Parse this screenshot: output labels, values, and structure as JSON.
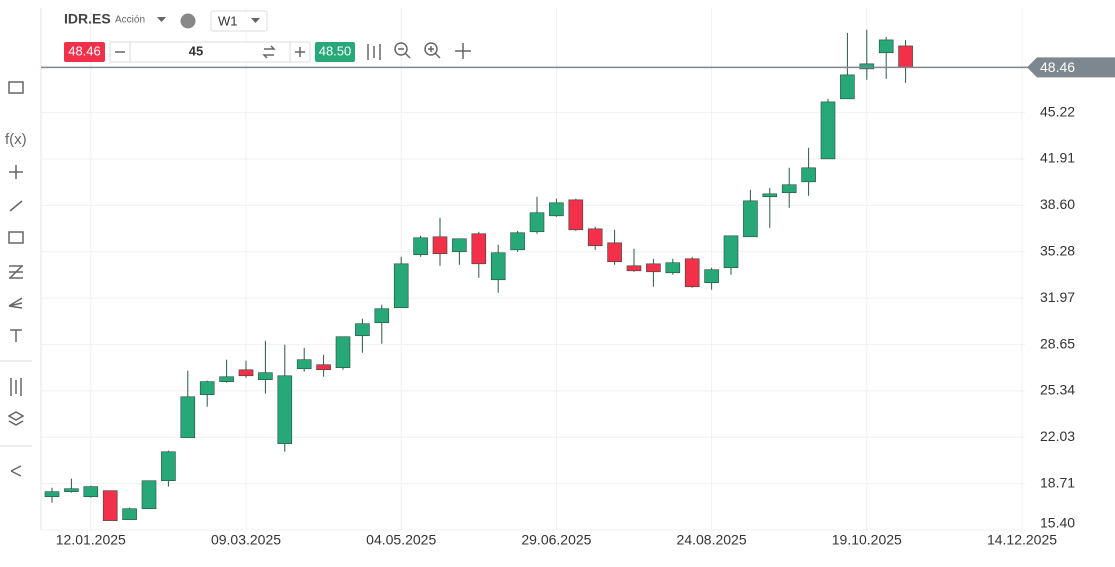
{
  "toolbar": {
    "symbol": "IDR.ES",
    "asset_type": "Acción",
    "timeframe": "W1",
    "sell_price": "48.46",
    "quantity": "45",
    "buy_price": "48.50"
  },
  "chart_data": {
    "type": "candlestick",
    "categories": [
      null,
      null,
      "12.01.2025",
      null,
      null,
      null,
      null,
      null,
      null,
      null,
      "09.03.2025",
      null,
      null,
      null,
      null,
      null,
      null,
      null,
      "04.05.2025",
      null,
      null,
      null,
      null,
      null,
      null,
      null,
      "29.06.2025",
      null,
      null,
      null,
      null,
      null,
      null,
      null,
      "24.08.2025",
      null,
      null,
      null,
      null,
      null,
      null,
      null,
      "19.10.2025",
      null,
      null,
      null,
      null,
      null,
      null,
      null,
      "14.12.2025"
    ],
    "series": [
      {
        "up_color": "#26a878",
        "down_color": "#f2304a",
        "open": [
          17.78,
          18.14,
          17.78,
          18.21,
          16.14,
          16.92,
          18.92,
          22.0,
          25.07,
          26.0,
          26.85,
          26.14,
          21.57,
          26.92,
          27.21,
          27.0,
          29.28,
          30.21,
          31.28,
          35.07,
          36.35,
          35.28,
          36.57,
          33.28,
          35.42,
          36.71,
          37.85,
          38.99,
          36.92,
          35.92,
          34.28,
          34.42,
          33.78,
          34.78,
          33.07,
          34.14,
          36.35,
          39.21,
          39.5,
          40.28,
          41.92,
          46.21,
          48.35,
          49.5,
          49.99,
          null,
          null,
          null,
          null,
          null,
          null
        ],
        "high": [
          18.42,
          19.07,
          18.57,
          18.21,
          17.0,
          18.92,
          21.07,
          26.78,
          26.07,
          27.57,
          27.5,
          28.92,
          28.64,
          28.42,
          27.92,
          29.21,
          30.5,
          31.5,
          34.92,
          36.42,
          37.71,
          36.21,
          36.71,
          35.78,
          36.78,
          39.21,
          39.07,
          39.07,
          37.07,
          36.85,
          35.5,
          34.78,
          34.78,
          34.92,
          34.14,
          36.42,
          39.71,
          39.85,
          41.28,
          42.71,
          46.21,
          50.92,
          51.14,
          50.64,
          50.42,
          null,
          null,
          null,
          null,
          null,
          null
        ],
        "low": [
          17.35,
          18.07,
          17.71,
          16.07,
          16.14,
          16.92,
          18.5,
          22.0,
          24.21,
          25.92,
          26.28,
          25.14,
          21.0,
          26.71,
          26.35,
          26.85,
          28.07,
          28.71,
          31.28,
          34.92,
          34.28,
          34.35,
          33.42,
          32.35,
          35.28,
          36.57,
          37.78,
          36.78,
          35.42,
          34.35,
          33.85,
          32.78,
          33.64,
          32.71,
          32.57,
          33.64,
          36.35,
          36.99,
          38.42,
          39.28,
          41.92,
          46.21,
          47.57,
          47.64,
          47.35,
          null,
          null,
          null,
          null,
          null,
          null
        ],
        "close": [
          18.14,
          18.35,
          18.5,
          16.07,
          16.92,
          18.92,
          20.99,
          24.92,
          26.0,
          26.35,
          26.42,
          26.64,
          26.42,
          27.57,
          26.85,
          29.21,
          30.14,
          31.21,
          34.42,
          36.28,
          35.14,
          36.21,
          34.42,
          35.21,
          36.64,
          38.07,
          38.78,
          36.85,
          35.71,
          34.57,
          33.92,
          33.85,
          34.5,
          32.78,
          34.0,
          36.42,
          38.92,
          39.42,
          40.07,
          41.28,
          45.99,
          47.92,
          48.71,
          50.42,
          48.46,
          null,
          null,
          null,
          null,
          null,
          null
        ]
      }
    ],
    "ylim": [
      15.4,
      52.7
    ],
    "yticks": [
      {
        "value": 15.4,
        "label": "15.40"
      },
      18.71,
      22.03,
      25.34,
      28.65,
      31.97,
      35.28,
      {
        "value": 38.6,
        "label": "38.60"
      },
      41.91,
      45.22
    ],
    "last_price": 48.46,
    "last_price_color": "#7d8790",
    "grid": true
  }
}
